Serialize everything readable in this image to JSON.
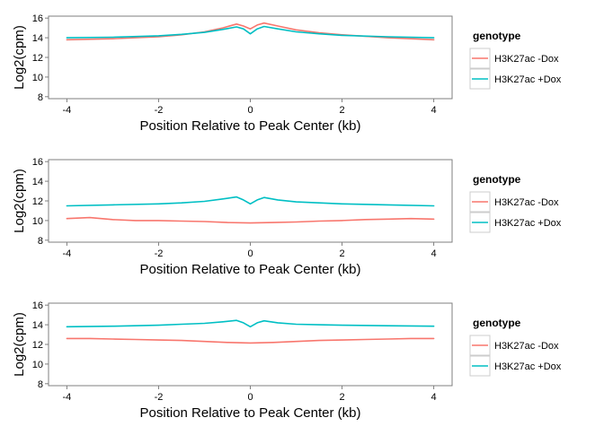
{
  "chart_data": [
    {
      "type": "line",
      "xlabel": "Position Relative to Peak Center (kb)",
      "ylabel": "Log2(cpm)",
      "xlim": [
        -4.4,
        4.4
      ],
      "ylim": [
        7.8,
        16.2
      ],
      "xticks": [
        -4,
        -2,
        0,
        2,
        4
      ],
      "xtick_labels": [
        "-4",
        "-2",
        "0",
        "2",
        "4"
      ],
      "yticks": [
        8,
        10,
        12,
        14,
        16
      ],
      "ytick_labels": [
        "8",
        "10",
        "12",
        "14",
        "16"
      ],
      "grid": false,
      "legend": {
        "title": "genotype",
        "placement": "right"
      },
      "series": [
        {
          "name": "H3K27ac -Dox",
          "color": "#F8766D",
          "x": [
            -4,
            -3,
            -2,
            -1.5,
            -1,
            -0.6,
            -0.3,
            -0.15,
            0,
            0.15,
            0.3,
            0.6,
            1,
            1.5,
            2,
            3,
            4
          ],
          "y": [
            13.8,
            13.9,
            14.1,
            14.3,
            14.6,
            15.0,
            15.4,
            15.2,
            14.9,
            15.3,
            15.5,
            15.2,
            14.8,
            14.5,
            14.3,
            14.0,
            13.8
          ]
        },
        {
          "name": "H3K27ac +Dox",
          "color": "#00BFC4",
          "x": [
            -4,
            -3,
            -2,
            -1.5,
            -1,
            -0.6,
            -0.3,
            -0.15,
            0,
            0.15,
            0.3,
            0.6,
            1,
            1.5,
            2,
            3,
            4
          ],
          "y": [
            14.0,
            14.05,
            14.2,
            14.35,
            14.55,
            14.85,
            15.1,
            14.9,
            14.4,
            14.9,
            15.15,
            14.9,
            14.6,
            14.4,
            14.25,
            14.1,
            14.0
          ]
        }
      ]
    },
    {
      "type": "line",
      "xlabel": "Position Relative to Peak Center (kb)",
      "ylabel": "Log2(cpm)",
      "xlim": [
        -4.4,
        4.4
      ],
      "ylim": [
        7.8,
        16.2
      ],
      "xticks": [
        -4,
        -2,
        0,
        2,
        4
      ],
      "xtick_labels": [
        "-4",
        "-2",
        "0",
        "2",
        "4"
      ],
      "yticks": [
        8,
        10,
        12,
        14,
        16
      ],
      "ytick_labels": [
        "8",
        "10",
        "12",
        "14",
        "16"
      ],
      "grid": false,
      "legend": {
        "title": "genotype",
        "placement": "right"
      },
      "series": [
        {
          "name": "H3K27ac -Dox",
          "color": "#F8766D",
          "x": [
            -4,
            -3.5,
            -3,
            -2.5,
            -2,
            -1.5,
            -1,
            -0.5,
            0,
            0.5,
            1,
            1.5,
            2,
            2.5,
            3,
            3.5,
            4
          ],
          "y": [
            10.2,
            10.3,
            10.1,
            10.0,
            10.0,
            9.95,
            9.9,
            9.8,
            9.75,
            9.8,
            9.85,
            9.95,
            10.0,
            10.1,
            10.15,
            10.2,
            10.15
          ]
        },
        {
          "name": "H3K27ac +Dox",
          "color": "#00BFC4",
          "x": [
            -4,
            -3,
            -2,
            -1.5,
            -1,
            -0.6,
            -0.3,
            -0.15,
            0,
            0.15,
            0.3,
            0.6,
            1,
            1.5,
            2,
            3,
            4
          ],
          "y": [
            11.5,
            11.6,
            11.7,
            11.8,
            11.95,
            12.2,
            12.4,
            12.1,
            11.7,
            12.1,
            12.35,
            12.1,
            11.9,
            11.8,
            11.7,
            11.6,
            11.5
          ]
        }
      ]
    },
    {
      "type": "line",
      "xlabel": "Position Relative to Peak Center (kb)",
      "ylabel": "Log2(cpm)",
      "xlim": [
        -4.4,
        4.4
      ],
      "ylim": [
        7.8,
        16.2
      ],
      "xticks": [
        -4,
        -2,
        0,
        2,
        4
      ],
      "xtick_labels": [
        "-4",
        "-2",
        "0",
        "2",
        "4"
      ],
      "yticks": [
        8,
        10,
        12,
        14,
        16
      ],
      "ytick_labels": [
        "8",
        "10",
        "12",
        "14",
        "16"
      ],
      "grid": false,
      "legend": {
        "title": "genotype",
        "placement": "right"
      },
      "series": [
        {
          "name": "H3K27ac -Dox",
          "color": "#F8766D",
          "x": [
            -4,
            -3.5,
            -3,
            -2.5,
            -2,
            -1.5,
            -1,
            -0.5,
            0,
            0.5,
            1,
            1.5,
            2,
            2.5,
            3,
            3.5,
            4
          ],
          "y": [
            12.6,
            12.6,
            12.55,
            12.5,
            12.45,
            12.4,
            12.3,
            12.2,
            12.15,
            12.2,
            12.3,
            12.4,
            12.45,
            12.5,
            12.55,
            12.6,
            12.6
          ]
        },
        {
          "name": "H3K27ac +Dox",
          "color": "#00BFC4",
          "x": [
            -4,
            -3,
            -2,
            -1.5,
            -1,
            -0.6,
            -0.3,
            -0.15,
            0,
            0.15,
            0.3,
            0.6,
            1,
            1.5,
            2,
            3,
            4
          ],
          "y": [
            13.8,
            13.85,
            13.95,
            14.05,
            14.15,
            14.3,
            14.45,
            14.2,
            13.8,
            14.2,
            14.4,
            14.2,
            14.05,
            14.0,
            13.95,
            13.9,
            13.85
          ]
        }
      ]
    }
  ]
}
